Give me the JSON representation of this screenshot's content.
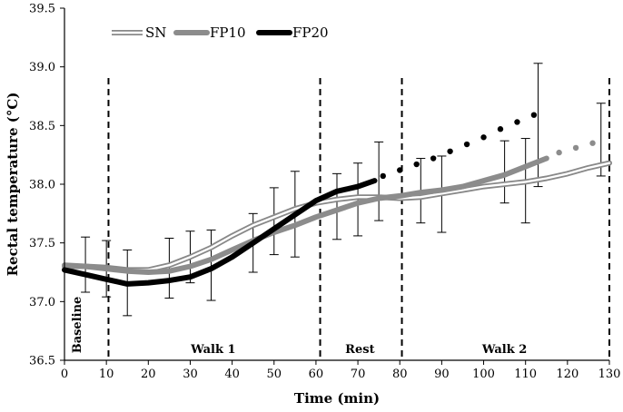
{
  "chart_data": {
    "type": "line",
    "title": "",
    "xlabel": "Time (min)",
    "ylabel": "Rectal temperature (°C)",
    "xlim": [
      0,
      130
    ],
    "ylim": [
      36.5,
      39.5
    ],
    "xticks": [
      0,
      10,
      20,
      30,
      40,
      50,
      60,
      70,
      80,
      90,
      100,
      110,
      120,
      130
    ],
    "yticks": [
      36.5,
      37.0,
      37.5,
      38.0,
      38.5,
      39.0,
      39.5
    ],
    "ytick_labels": [
      "36.5",
      "37.0",
      "37.5",
      "38.0",
      "38.5",
      "39.0",
      "39.5"
    ],
    "grid": false,
    "legend": [
      "SN",
      "FP10",
      "FP20"
    ],
    "legend_position": "top-left",
    "phase_lines": [
      10.5,
      61,
      80.5,
      130
    ],
    "phases": [
      {
        "label": "Baseline",
        "x": 3,
        "orientation": "vertical"
      },
      {
        "label": "Walk 1",
        "x": 35.5
      },
      {
        "label": "Rest",
        "x": 70.5
      },
      {
        "label": "Walk 2",
        "x": 105
      }
    ],
    "series": [
      {
        "name": "SN",
        "style": "double-line",
        "color": "#888888",
        "x": [
          0,
          5,
          10,
          15,
          20,
          25,
          30,
          35,
          40,
          45,
          50,
          55,
          60,
          65,
          70,
          75,
          80,
          85,
          90,
          95,
          100,
          105,
          110,
          115,
          120,
          125,
          130
        ],
        "y": [
          37.31,
          37.3,
          37.29,
          37.27,
          37.27,
          37.31,
          37.38,
          37.46,
          37.56,
          37.65,
          37.72,
          37.79,
          37.84,
          37.87,
          37.89,
          37.89,
          37.88,
          37.89,
          37.92,
          37.95,
          37.98,
          38.0,
          38.02,
          38.05,
          38.09,
          38.14,
          38.18
        ]
      },
      {
        "name": "FP10",
        "style": "thick-solid",
        "color": "#8c8c8c",
        "x": [
          0,
          5,
          10,
          15,
          20,
          25,
          30,
          35,
          40,
          45,
          50,
          55,
          60,
          65,
          70,
          75,
          80,
          85,
          90,
          95,
          100,
          105,
          110,
          115
        ],
        "y": [
          37.3,
          37.3,
          37.28,
          37.26,
          37.25,
          37.26,
          37.3,
          37.36,
          37.44,
          37.52,
          37.59,
          37.65,
          37.72,
          37.78,
          37.84,
          37.88,
          37.9,
          37.93,
          37.95,
          37.98,
          38.03,
          38.08,
          38.15,
          38.22
        ]
      },
      {
        "name": "FP20",
        "style": "thick-solid",
        "color": "#000000",
        "x": [
          0,
          5,
          10,
          15,
          20,
          25,
          30,
          35,
          40,
          45,
          50,
          55,
          60,
          65,
          70,
          74
        ],
        "y": [
          37.27,
          37.23,
          37.19,
          37.15,
          37.16,
          37.18,
          37.21,
          37.28,
          37.38,
          37.5,
          37.62,
          37.74,
          37.86,
          37.94,
          37.98,
          38.03
        ]
      }
    ],
    "extrapolated_dots": [
      {
        "series": "FP20",
        "color": "#000000",
        "x": [
          76,
          80,
          84,
          88,
          92,
          96,
          100,
          104,
          108,
          112
        ],
        "y": [
          38.07,
          38.12,
          38.17,
          38.22,
          38.28,
          38.34,
          38.4,
          38.47,
          38.53,
          38.59
        ]
      },
      {
        "series": "FP10",
        "color": "#8c8c8c",
        "x": [
          118,
          122,
          126
        ],
        "y": [
          38.27,
          38.31,
          38.35
        ]
      }
    ],
    "error_bars": [
      {
        "x": 5,
        "low": 37.08,
        "high": 37.55
      },
      {
        "x": 10,
        "low": 37.04,
        "high": 37.52
      },
      {
        "x": 15,
        "low": 36.88,
        "high": 37.44
      },
      {
        "x": 25,
        "low": 37.03,
        "high": 37.54
      },
      {
        "x": 30,
        "low": 37.16,
        "high": 37.6
      },
      {
        "x": 35,
        "low": 37.01,
        "high": 37.61
      },
      {
        "x": 45,
        "low": 37.25,
        "high": 37.75
      },
      {
        "x": 50,
        "low": 37.4,
        "high": 37.97
      },
      {
        "x": 55,
        "low": 37.38,
        "high": 38.11
      },
      {
        "x": 65,
        "low": 37.53,
        "high": 38.09
      },
      {
        "x": 70,
        "low": 37.56,
        "high": 38.18
      },
      {
        "x": 75,
        "low": 37.69,
        "high": 38.36
      },
      {
        "x": 85,
        "low": 37.67,
        "high": 38.22
      },
      {
        "x": 90,
        "low": 37.59,
        "high": 38.24
      },
      {
        "x": 105,
        "low": 37.84,
        "high": 38.37
      },
      {
        "x": 110,
        "low": 37.67,
        "high": 38.39
      },
      {
        "x": 113,
        "low": 37.98,
        "high": 39.03
      },
      {
        "x": 128,
        "low": 38.07,
        "high": 38.69
      }
    ]
  }
}
